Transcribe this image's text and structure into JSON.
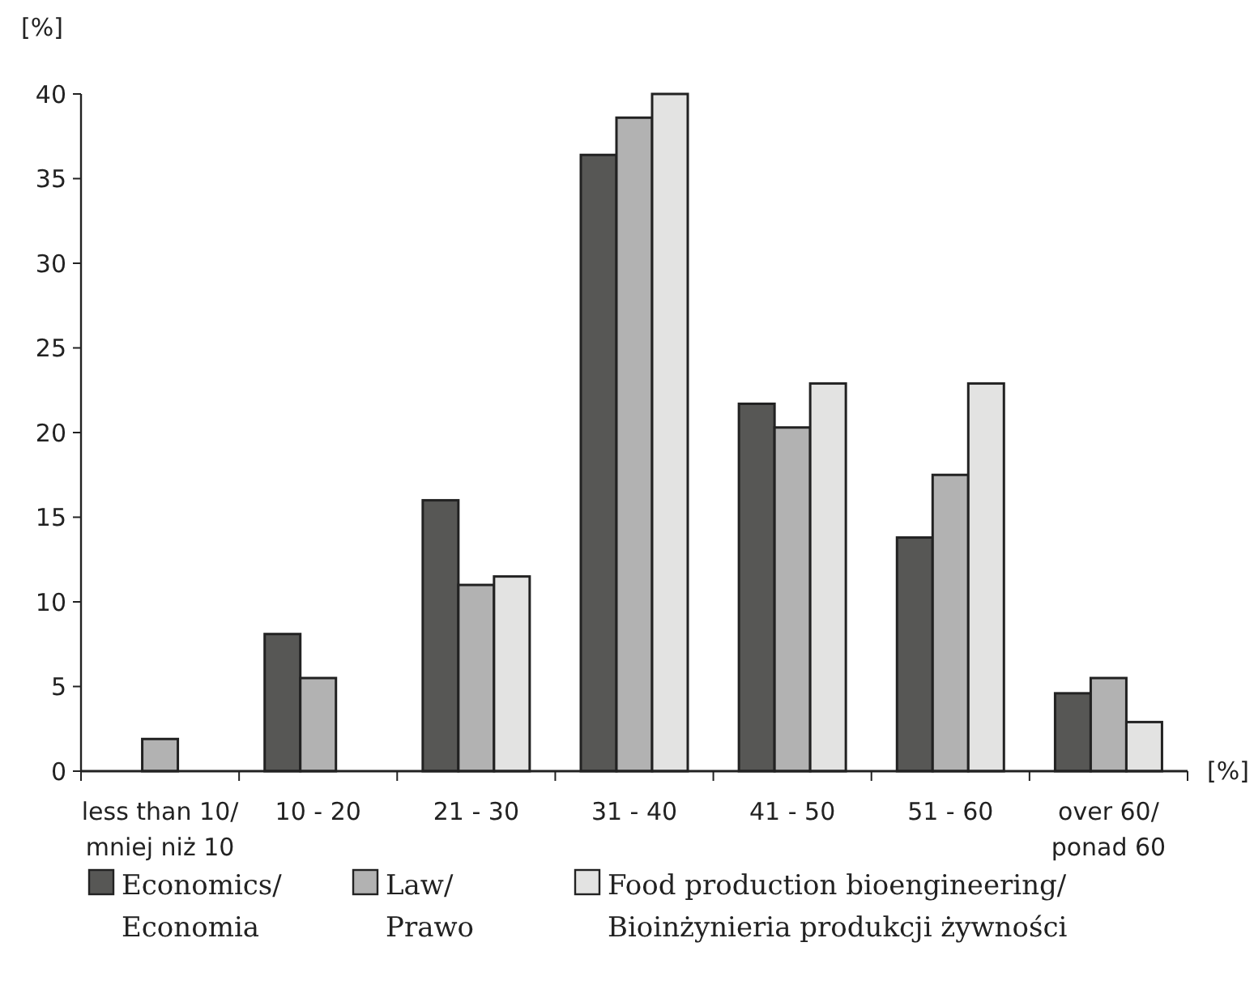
{
  "chart_data": {
    "type": "bar",
    "ylabel": "[%]",
    "xlabel": "[%]",
    "categories": [
      "less than 10/ mniej niż 10",
      "10 - 20",
      "21 - 30",
      "31 - 40",
      "41 - 50",
      "51 - 60",
      "over 60/ ponad 60"
    ],
    "series": [
      {
        "name": "Economics/ Economia",
        "color": "#575755",
        "values": [
          null,
          8.1,
          16.0,
          36.4,
          21.7,
          13.8,
          4.6
        ]
      },
      {
        "name": "Law/ Prawo",
        "color": "#b2b2b2",
        "values": [
          1.9,
          5.5,
          11.0,
          38.6,
          20.3,
          17.5,
          5.5
        ]
      },
      {
        "name": "Food production bioengineering/ Bioinżynieria produkcji żywności",
        "color": "#e3e3e2",
        "values": [
          null,
          null,
          11.5,
          40.0,
          22.9,
          22.9,
          2.9
        ]
      }
    ],
    "ylim": [
      0,
      40
    ],
    "yticks": [
      0,
      5,
      10,
      15,
      20,
      25,
      30,
      35,
      40
    ],
    "grid": false,
    "legend": "bottom"
  }
}
